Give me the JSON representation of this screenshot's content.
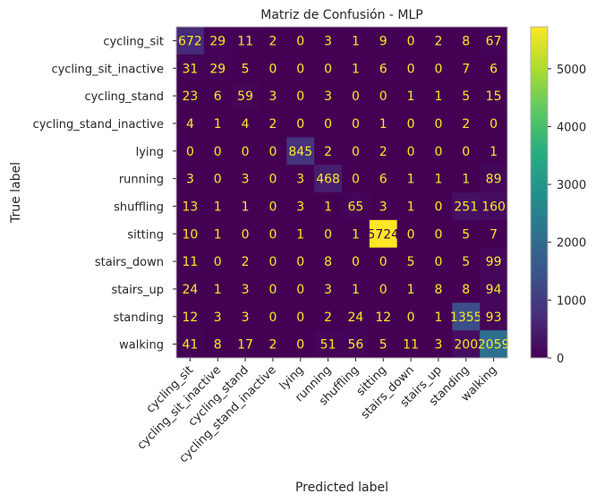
{
  "chart_data": {
    "type": "heatmap",
    "title": "Matriz de Confusión - MLP",
    "xlabel": "Predicted label",
    "ylabel": "True label",
    "labels": [
      "cycling_sit",
      "cycling_sit_inactive",
      "cycling_stand",
      "cycling_stand_inactive",
      "lying",
      "running",
      "shuffling",
      "sitting",
      "stairs_down",
      "stairs_up",
      "standing",
      "walking"
    ],
    "matrix": [
      [
        672,
        29,
        11,
        2,
        0,
        3,
        1,
        9,
        0,
        2,
        8,
        67
      ],
      [
        31,
        29,
        5,
        0,
        0,
        0,
        1,
        6,
        0,
        0,
        7,
        6
      ],
      [
        23,
        6,
        59,
        3,
        0,
        3,
        0,
        0,
        1,
        1,
        5,
        15
      ],
      [
        4,
        1,
        4,
        2,
        0,
        0,
        0,
        1,
        0,
        0,
        2,
        0
      ],
      [
        0,
        0,
        0,
        0,
        845,
        2,
        0,
        2,
        0,
        0,
        0,
        1
      ],
      [
        3,
        0,
        3,
        0,
        3,
        468,
        0,
        6,
        1,
        1,
        1,
        89
      ],
      [
        13,
        1,
        1,
        0,
        3,
        1,
        65,
        3,
        1,
        0,
        251,
        160
      ],
      [
        10,
        1,
        0,
        0,
        1,
        0,
        1,
        5724,
        0,
        0,
        5,
        7
      ],
      [
        11,
        0,
        2,
        0,
        0,
        8,
        0,
        0,
        5,
        0,
        5,
        99
      ],
      [
        24,
        1,
        3,
        0,
        0,
        3,
        1,
        0,
        1,
        8,
        8,
        94
      ],
      [
        12,
        3,
        3,
        0,
        0,
        2,
        24,
        12,
        0,
        1,
        1355,
        93
      ],
      [
        41,
        8,
        17,
        2,
        0,
        51,
        56,
        5,
        11,
        3,
        200,
        2059
      ]
    ],
    "colorbar": {
      "range": [
        0,
        5724
      ],
      "ticks": [
        0,
        1000,
        2000,
        3000,
        4000,
        5000
      ],
      "colormap": "viridis"
    },
    "grid": false,
    "colors": {
      "low_text": "#fde725",
      "high_text": "#440154"
    }
  }
}
